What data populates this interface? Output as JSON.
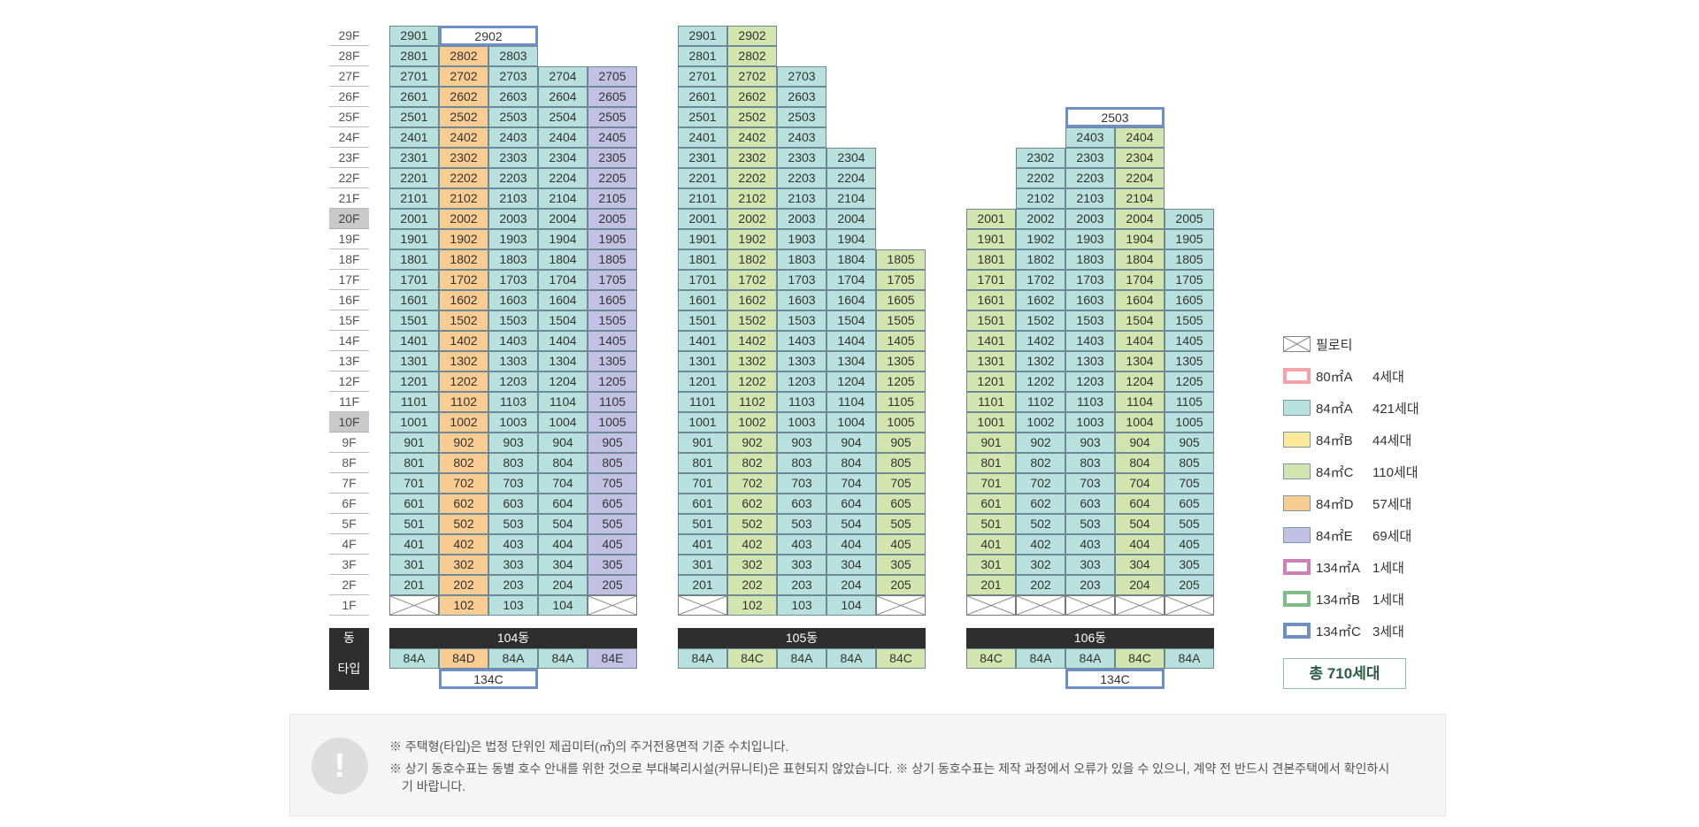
{
  "floors": [
    "29F",
    "28F",
    "27F",
    "26F",
    "25F",
    "24F",
    "23F",
    "22F",
    "21F",
    "20F",
    "19F",
    "18F",
    "17F",
    "16F",
    "15F",
    "14F",
    "13F",
    "12F",
    "11F",
    "10F",
    "9F",
    "8F",
    "7F",
    "6F",
    "5F",
    "4F",
    "3F",
    "2F",
    "1F"
  ],
  "highlighted_floors": [
    "20F",
    "10F"
  ],
  "colors": {
    "t84A": "#b8e0dd",
    "t84B": "#fce99a",
    "t84C": "#d2e5ae",
    "t84D": "#f9cc92",
    "t84E": "#c3c1e3",
    "t80A": "#f4a4a8",
    "t134A": "#cf7fb7",
    "t134B": "#7ebd88",
    "t134C": "#6e8fc4",
    "dark": "#2e2e2e"
  },
  "left_header": {
    "dong": "동",
    "type": "타입"
  },
  "buildings": [
    {
      "name": "104동",
      "types": [
        "84A",
        "84D",
        "84A",
        "84A",
        "84E"
      ],
      "highest_floor": [
        29,
        29,
        28,
        27,
        27
      ],
      "pilotis_lines": [
        1,
        5
      ],
      "top_special": [
        {
          "floor": 29,
          "label": "2902",
          "lines": [
            2,
            3
          ],
          "type": "134C"
        }
      ],
      "extra_type": {
        "label": "134C",
        "lines": [
          2,
          3
        ]
      },
      "first_floor": [
        "",
        "102",
        "103",
        "104",
        ""
      ]
    },
    {
      "name": "105동",
      "types": [
        "84A",
        "84C",
        "84A",
        "84A",
        "84C"
      ],
      "highest_floor": [
        29,
        29,
        27,
        23,
        18
      ],
      "pilotis_lines": [
        1,
        5
      ],
      "top_special": [],
      "extra_type": null,
      "first_floor": [
        "",
        "102",
        "103",
        "104",
        ""
      ]
    },
    {
      "name": "106동",
      "types": [
        "84C",
        "84A",
        "84A",
        "84C",
        "84A"
      ],
      "highest_floor": [
        20,
        23,
        24,
        24,
        20
      ],
      "pilotis_lines": [
        1,
        2,
        3,
        4,
        5
      ],
      "top_special": [
        {
          "floor": 25,
          "label": "2503",
          "lines": [
            3,
            4
          ],
          "type": "134C"
        }
      ],
      "extra_type": {
        "label": "134C",
        "lines": [
          3,
          4
        ]
      },
      "first_floor": [
        "",
        "",
        "",
        "",
        ""
      ]
    }
  ],
  "legend": [
    {
      "key": "pilotis",
      "name": "필로티",
      "count": ""
    },
    {
      "key": "t80A",
      "name": "80㎡A",
      "count": "4세대"
    },
    {
      "key": "t84A",
      "name": "84㎡A",
      "count": "421세대"
    },
    {
      "key": "t84B",
      "name": "84㎡B",
      "count": "44세대"
    },
    {
      "key": "t84C",
      "name": "84㎡C",
      "count": "110세대"
    },
    {
      "key": "t84D",
      "name": "84㎡D",
      "count": "57세대"
    },
    {
      "key": "t84E",
      "name": "84㎡E",
      "count": "69세대"
    },
    {
      "key": "t134A",
      "name": "134㎡A",
      "count": "1세대"
    },
    {
      "key": "t134B",
      "name": "134㎡B",
      "count": "1세대"
    },
    {
      "key": "t134C",
      "name": "134㎡C",
      "count": "3세대"
    }
  ],
  "total": "총 710세대",
  "notice": {
    "line1": "※ 주택형(타입)은 법정 단위인 제곱미터(㎡)의 주거전용면적 기준 수치입니다.",
    "line2": "※ 상기 동호수표는 동별 호수 안내를 위한 것으로 부대복리시설(커뮤니티)은 표현되지 않았습니다. ※ 상기 동호수표는 제작 과정에서 오류가 있을 수 있으니, 계약 전 반드시 견본주택에서 확인하시",
    "line3": "기 바랍니다.",
    "icon": "exclamation-icon",
    "icon_glyph": "!"
  }
}
